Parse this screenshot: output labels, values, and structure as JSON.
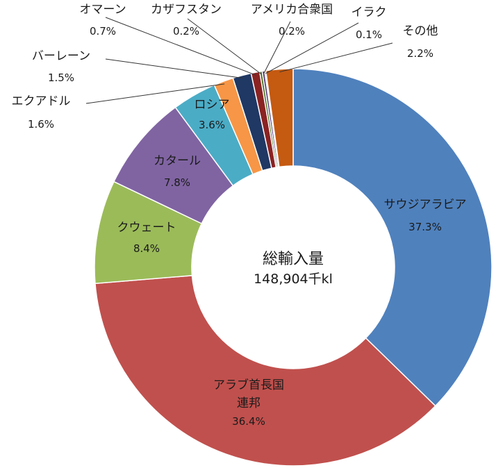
{
  "chart_data": {
    "type": "pie",
    "variant": "donut",
    "center_label": "総輸入量",
    "center_value": "148,904千kl",
    "slices": [
      {
        "label_lines": [
          "サウジアラビア"
        ],
        "value": 37.3,
        "value_label": "37.3%",
        "color": "#4f81bd"
      },
      {
        "label_lines": [
          "アラブ首長国",
          "連邦"
        ],
        "value": 36.4,
        "value_label": "36.4%",
        "color": "#c0504d"
      },
      {
        "label_lines": [
          "クウェート"
        ],
        "value": 8.4,
        "value_label": "8.4%",
        "color": "#9bbb59"
      },
      {
        "label_lines": [
          "カタール"
        ],
        "value": 7.8,
        "value_label": "7.8%",
        "color": "#8064a2"
      },
      {
        "label_lines": [
          "ロシア"
        ],
        "value": 3.6,
        "value_label": "3.6%",
        "color": "#4bacc6"
      },
      {
        "label_lines": [
          "エクアドル"
        ],
        "value": 1.6,
        "value_label": "1.6%",
        "color": "#f79646"
      },
      {
        "label_lines": [
          "バーレーン"
        ],
        "value": 1.5,
        "value_label": "1.5%",
        "color": "#1f3864"
      },
      {
        "label_lines": [
          "オマーン"
        ],
        "value": 0.7,
        "value_label": "0.7%",
        "color": "#8b2323"
      },
      {
        "label_lines": [
          "カザフスタン"
        ],
        "value": 0.2,
        "value_label": "0.2%",
        "color": "#4a6f1f"
      },
      {
        "label_lines": [
          "アメリカ合衆国"
        ],
        "value": 0.2,
        "value_label": "0.2%",
        "color": "#5a3d7a"
      },
      {
        "label_lines": [
          "イラク"
        ],
        "value": 0.1,
        "value_label": "0.1%",
        "color": "#2e8aa0"
      },
      {
        "label_lines": [
          "その他"
        ],
        "value": 2.2,
        "value_label": "2.2%",
        "color": "#c55a11"
      }
    ]
  }
}
